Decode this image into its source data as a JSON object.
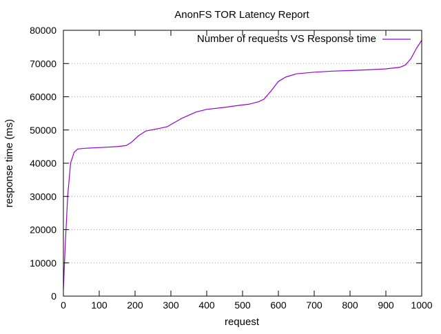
{
  "chart_data": {
    "type": "line",
    "title": "AnonFS TOR Latency Report",
    "xlabel": "request",
    "ylabel": "response time (ms)",
    "xlim": [
      0,
      1000
    ],
    "ylim": [
      0,
      80000
    ],
    "xticks": [
      0,
      100,
      200,
      300,
      400,
      500,
      600,
      700,
      800,
      900,
      1000
    ],
    "yticks": [
      0,
      10000,
      20000,
      30000,
      40000,
      50000,
      60000,
      70000,
      80000
    ],
    "grid": "horizontal dotted",
    "legend_position": "top-right",
    "series": [
      {
        "name": "Number of requests VS Response time",
        "color": "#9400d3",
        "x": [
          0,
          5,
          12,
          20,
          30,
          40,
          60,
          100,
          150,
          175,
          190,
          210,
          230,
          260,
          290,
          330,
          370,
          400,
          450,
          490,
          520,
          545,
          560,
          580,
          600,
          620,
          650,
          700,
          750,
          800,
          850,
          900,
          940,
          955,
          970,
          985,
          1000
        ],
        "values": [
          2000,
          15000,
          30000,
          40000,
          43300,
          44300,
          44500,
          44700,
          45000,
          45300,
          46300,
          48300,
          49700,
          50300,
          51000,
          53500,
          55400,
          56200,
          56800,
          57400,
          57800,
          58500,
          59300,
          61800,
          64600,
          65900,
          66900,
          67400,
          67700,
          67900,
          68100,
          68400,
          68900,
          69600,
          71500,
          74500,
          77000
        ]
      }
    ]
  }
}
